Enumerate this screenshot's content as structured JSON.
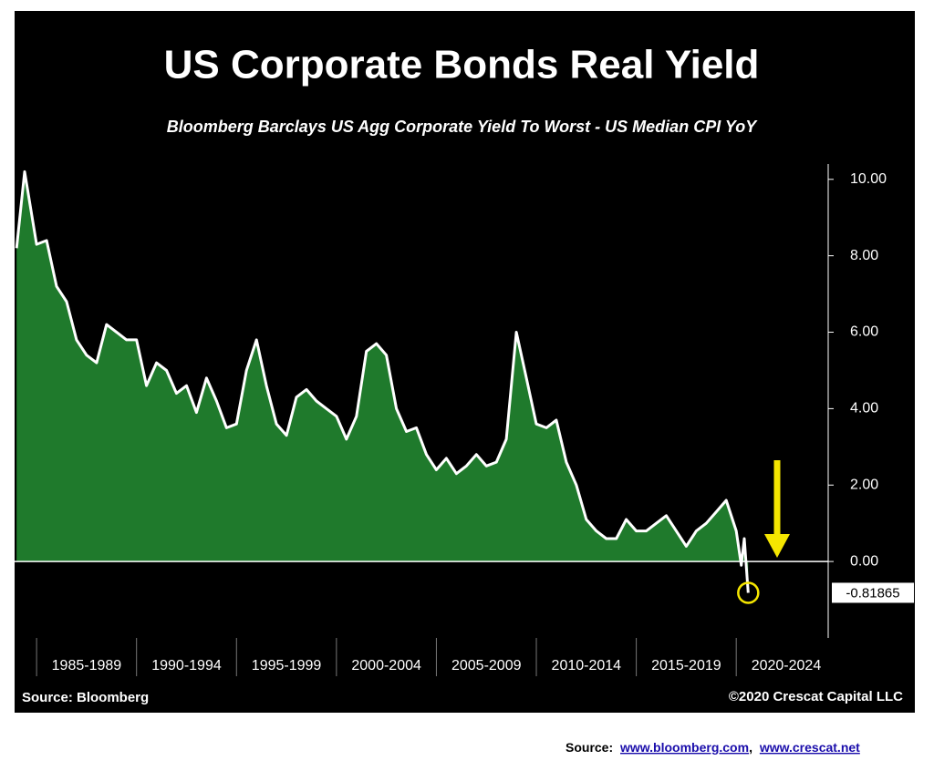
{
  "chart_data": {
    "type": "area",
    "title": "US Corporate Bonds Real Yield",
    "subtitle": "Bloomberg Barclays US Agg Corporate Yield To Worst - US Median CPI YoY",
    "source": "Source: Bloomberg",
    "copyright": "©2020 Crescat Capital LLC",
    "x": [
      1984.0,
      1984.4,
      1985.0,
      1985.5,
      1986.0,
      1986.5,
      1987.0,
      1987.5,
      1988.0,
      1988.5,
      1989.0,
      1989.5,
      1990.0,
      1990.5,
      1991.0,
      1991.5,
      1992.0,
      1992.5,
      1993.0,
      1993.5,
      1994.0,
      1994.5,
      1995.0,
      1995.5,
      1996.0,
      1996.5,
      1997.0,
      1997.5,
      1998.0,
      1998.5,
      1999.0,
      1999.5,
      2000.0,
      2000.5,
      2001.0,
      2001.5,
      2002.0,
      2002.5,
      2003.0,
      2003.5,
      2004.0,
      2004.5,
      2005.0,
      2005.5,
      2006.0,
      2006.5,
      2007.0,
      2007.5,
      2008.0,
      2008.5,
      2009.0,
      2009.5,
      2010.0,
      2010.5,
      2011.0,
      2011.5,
      2012.0,
      2012.5,
      2013.0,
      2013.5,
      2014.0,
      2014.5,
      2015.0,
      2015.5,
      2016.0,
      2016.5,
      2017.0,
      2017.5,
      2018.0,
      2018.5,
      2019.0,
      2019.5,
      2020.0,
      2020.25,
      2020.4,
      2020.6
    ],
    "series": [
      {
        "name": "Real Yield",
        "color": "#1f7a2c",
        "line_color": "#ffffff",
        "values": [
          8.2,
          10.2,
          8.3,
          8.4,
          7.2,
          6.8,
          5.8,
          5.4,
          5.2,
          6.2,
          6.0,
          5.8,
          5.8,
          4.6,
          5.2,
          5.0,
          4.4,
          4.6,
          3.9,
          4.8,
          4.2,
          3.5,
          3.6,
          5.0,
          5.8,
          4.6,
          3.6,
          3.3,
          4.3,
          4.5,
          4.2,
          4.0,
          3.8,
          3.2,
          3.8,
          5.5,
          5.7,
          5.4,
          4.0,
          3.4,
          3.5,
          2.8,
          2.4,
          2.7,
          2.3,
          2.5,
          2.8,
          2.5,
          2.6,
          3.2,
          6.0,
          4.8,
          3.6,
          3.5,
          3.7,
          2.6,
          2.0,
          1.1,
          0.8,
          0.6,
          0.6,
          1.1,
          0.8,
          0.8,
          1.0,
          1.2,
          0.8,
          0.4,
          0.8,
          1.0,
          1.3,
          1.6,
          0.8,
          -0.1,
          0.6,
          -0.81865
        ]
      }
    ],
    "xlim": [
      1983.9,
      2024.6
    ],
    "xticks": [
      {
        "value": 1985,
        "label": "1985-1989"
      },
      {
        "value": 1990,
        "label": "1990-1994"
      },
      {
        "value": 1995,
        "label": "1995-1999"
      },
      {
        "value": 2000,
        "label": "2000-2004"
      },
      {
        "value": 2005,
        "label": "2005-2009"
      },
      {
        "value": 2010,
        "label": "2010-2014"
      },
      {
        "value": 2015,
        "label": "2015-2019"
      },
      {
        "value": 2020,
        "label": "2020-2024"
      }
    ],
    "ylim": [
      -2,
      10.4
    ],
    "yticks": [
      {
        "value": 0,
        "label": "0.00"
      },
      {
        "value": 2,
        "label": "2.00"
      },
      {
        "value": 4,
        "label": "4.00"
      },
      {
        "value": 6,
        "label": "6.00"
      },
      {
        "value": 8,
        "label": "8.00"
      },
      {
        "value": 10,
        "label": "10.00"
      }
    ]
  },
  "footer": {
    "label": "Source:",
    "links": [
      "www.bloomberg.com",
      "www.crescat.net"
    ],
    "separator": ","
  }
}
